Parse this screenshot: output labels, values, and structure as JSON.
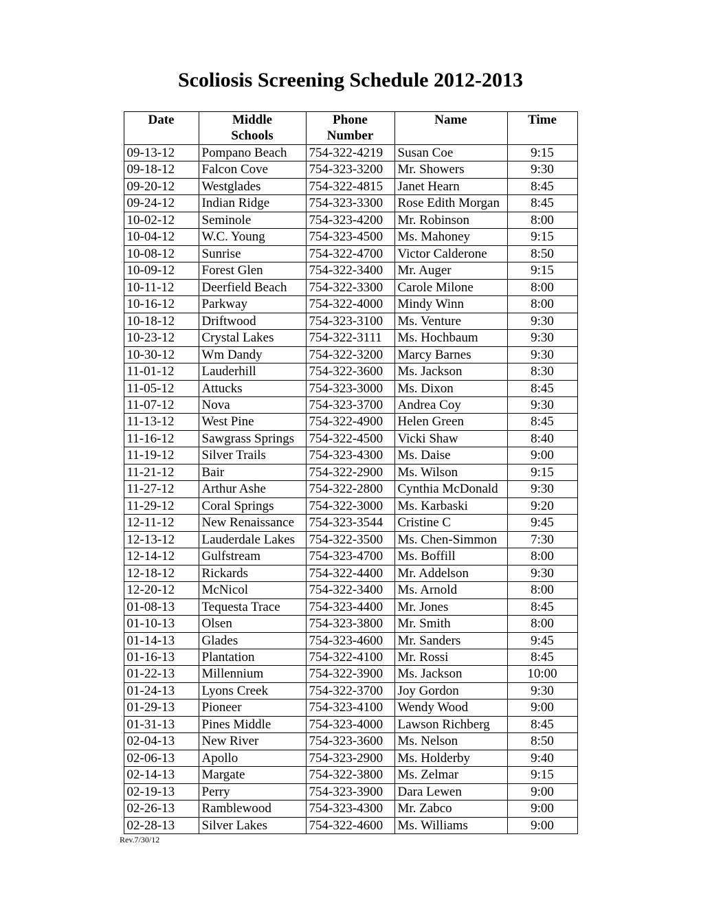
{
  "title": "Scoliosis Screening Schedule 2012-2013",
  "columns": {
    "date": "Date",
    "school1": "Middle",
    "school2": "Schools",
    "phone1": "Phone",
    "phone2": "Number",
    "name": "Name",
    "time": "Time"
  },
  "rows": [
    {
      "date": "09-13-12",
      "school": "Pompano Beach",
      "phone": "754-322-4219",
      "name": "Susan Coe",
      "time": "9:15"
    },
    {
      "date": "09-18-12",
      "school": "Falcon Cove",
      "phone": "754-323-3200",
      "name": "Mr. Showers",
      "time": "9:30"
    },
    {
      "date": "09-20-12",
      "school": "Westglades",
      "phone": "754-322-4815",
      "name": "Janet Hearn",
      "time": "8:45"
    },
    {
      "date": "09-24-12",
      "school": "Indian Ridge",
      "phone": "754-323-3300",
      "name": "Rose Edith Morgan",
      "time": "8:45"
    },
    {
      "date": "10-02-12",
      "school": "Seminole",
      "phone": "754-323-4200",
      "name": "Mr. Robinson",
      "time": "8:00"
    },
    {
      "date": "10-04-12",
      "school": "W.C. Young",
      "phone": "754-323-4500",
      "name": "Ms. Mahoney",
      "time": "9:15"
    },
    {
      "date": "10-08-12",
      "school": "Sunrise",
      "phone": "754-322-4700",
      "name": "Victor Calderone",
      "time": "8:50"
    },
    {
      "date": "10-09-12",
      "school": "Forest Glen",
      "phone": "754-322-3400",
      "name": "Mr. Auger",
      "time": "9:15"
    },
    {
      "date": "10-11-12",
      "school": "Deerfield Beach",
      "phone": "754-322-3300",
      "name": "Carole Milone",
      "time": "8:00"
    },
    {
      "date": "10-16-12",
      "school": "Parkway",
      "phone": "754-322-4000",
      "name": "Mindy Winn",
      "time": "8:00"
    },
    {
      "date": "10-18-12",
      "school": "Driftwood",
      "phone": "754-323-3100",
      "name": "Ms. Venture",
      "time": "9:30"
    },
    {
      "date": "10-23-12",
      "school": "Crystal Lakes",
      "phone": "754-322-3111",
      "name": "Ms. Hochbaum",
      "time": "9:30"
    },
    {
      "date": "10-30-12",
      "school": "Wm Dandy",
      "phone": "754-322-3200",
      "name": "Marcy Barnes",
      "time": "9:30"
    },
    {
      "date": "11-01-12",
      "school": "Lauderhill",
      "phone": "754-322-3600",
      "name": "Ms. Jackson",
      "time": "8:30"
    },
    {
      "date": "11-05-12",
      "school": "Attucks",
      "phone": "754-323-3000",
      "name": "Ms. Dixon",
      "time": "8:45"
    },
    {
      "date": "11-07-12",
      "school": "Nova",
      "phone": "754-323-3700",
      "name": "Andrea Coy",
      "time": "9:30"
    },
    {
      "date": "11-13-12",
      "school": "West Pine",
      "phone": "754-322-4900",
      "name": "Helen Green",
      "time": "8:45"
    },
    {
      "date": "11-16-12",
      "school": "Sawgrass Springs",
      "phone": "754-322-4500",
      "name": "Vicki Shaw",
      "time": "8:40"
    },
    {
      "date": "11-19-12",
      "school": "Silver Trails",
      "phone": "754-323-4300",
      "name": "Ms. Daise",
      "time": "9:00"
    },
    {
      "date": "11-21-12",
      "school": "Bair",
      "phone": "754-322-2900",
      "name": "Ms. Wilson",
      "time": "9:15"
    },
    {
      "date": "11-27-12",
      "school": "Arthur Ashe",
      "phone": "754-322-2800",
      "name": "Cynthia McDonald",
      "time": "9:30"
    },
    {
      "date": "11-29-12",
      "school": "Coral Springs",
      "phone": "754-322-3000",
      "name": "Ms. Karbaski",
      "time": "9:20"
    },
    {
      "date": "12-11-12",
      "school": "New Renaissance",
      "phone": "754-323-3544",
      "name": "Cristine C",
      "time": "9:45"
    },
    {
      "date": "12-13-12",
      "school": "Lauderdale Lakes",
      "phone": "754-322-3500",
      "name": "Ms. Chen-Simmon",
      "time": "7:30"
    },
    {
      "date": "12-14-12",
      "school": "Gulfstream",
      "phone": "754-323-4700",
      "name": "Ms. Boffill",
      "time": "8:00"
    },
    {
      "date": "12-18-12",
      "school": "Rickards",
      "phone": "754-322-4400",
      "name": "Mr. Addelson",
      "time": "9:30"
    },
    {
      "date": "12-20-12",
      "school": "McNicol",
      "phone": "754-322-3400",
      "name": "Ms. Arnold",
      "time": "8:00"
    },
    {
      "date": "01-08-13",
      "school": "Tequesta Trace",
      "phone": "754-323-4400",
      "name": "Mr. Jones",
      "time": "8:45"
    },
    {
      "date": "01-10-13",
      "school": "Olsen",
      "phone": "754-323-3800",
      "name": "Mr. Smith",
      "time": "8:00"
    },
    {
      "date": "01-14-13",
      "school": "Glades",
      "phone": "754-323-4600",
      "name": "Mr. Sanders",
      "time": "9:45"
    },
    {
      "date": "01-16-13",
      "school": "Plantation",
      "phone": "754-322-4100",
      "name": "Mr. Rossi",
      "time": "8:45"
    },
    {
      "date": "01-22-13",
      "school": "Millennium",
      "phone": "754-322-3900",
      "name": "Ms. Jackson",
      "time": "10:00"
    },
    {
      "date": "01-24-13",
      "school": "Lyons Creek",
      "phone": "754-322-3700",
      "name": "Joy Gordon",
      "time": "9:30"
    },
    {
      "date": "01-29-13",
      "school": "Pioneer",
      "phone": "754-323-4100",
      "name": "Wendy Wood",
      "time": "9:00"
    },
    {
      "date": "01-31-13",
      "school": "Pines Middle",
      "phone": "754-323-4000",
      "name": "Lawson Richberg",
      "time": "8:45"
    },
    {
      "date": "02-04-13",
      "school": "New River",
      "phone": "754-323-3600",
      "name": "Ms. Nelson",
      "time": "8:50"
    },
    {
      "date": "02-06-13",
      "school": "Apollo",
      "phone": "754-323-2900",
      "name": "Ms. Holderby",
      "time": "9:40"
    },
    {
      "date": "02-14-13",
      "school": "Margate",
      "phone": "754-322-3800",
      "name": "Ms. Zelmar",
      "time": "9:15"
    },
    {
      "date": "02-19-13",
      "school": "Perry",
      "phone": "754-323-3900",
      "name": "Dara Lewen",
      "time": "9:00"
    },
    {
      "date": "02-26-13",
      "school": "Ramblewood",
      "phone": "754-323-4300",
      "name": "Mr. Zabco",
      "time": "9:00"
    },
    {
      "date": "02-28-13",
      "school": "Silver Lakes",
      "phone": "754-322-4600",
      "name": "Ms. Williams",
      "time": "9:00"
    }
  ],
  "footnote": "Rev.7/30/12"
}
